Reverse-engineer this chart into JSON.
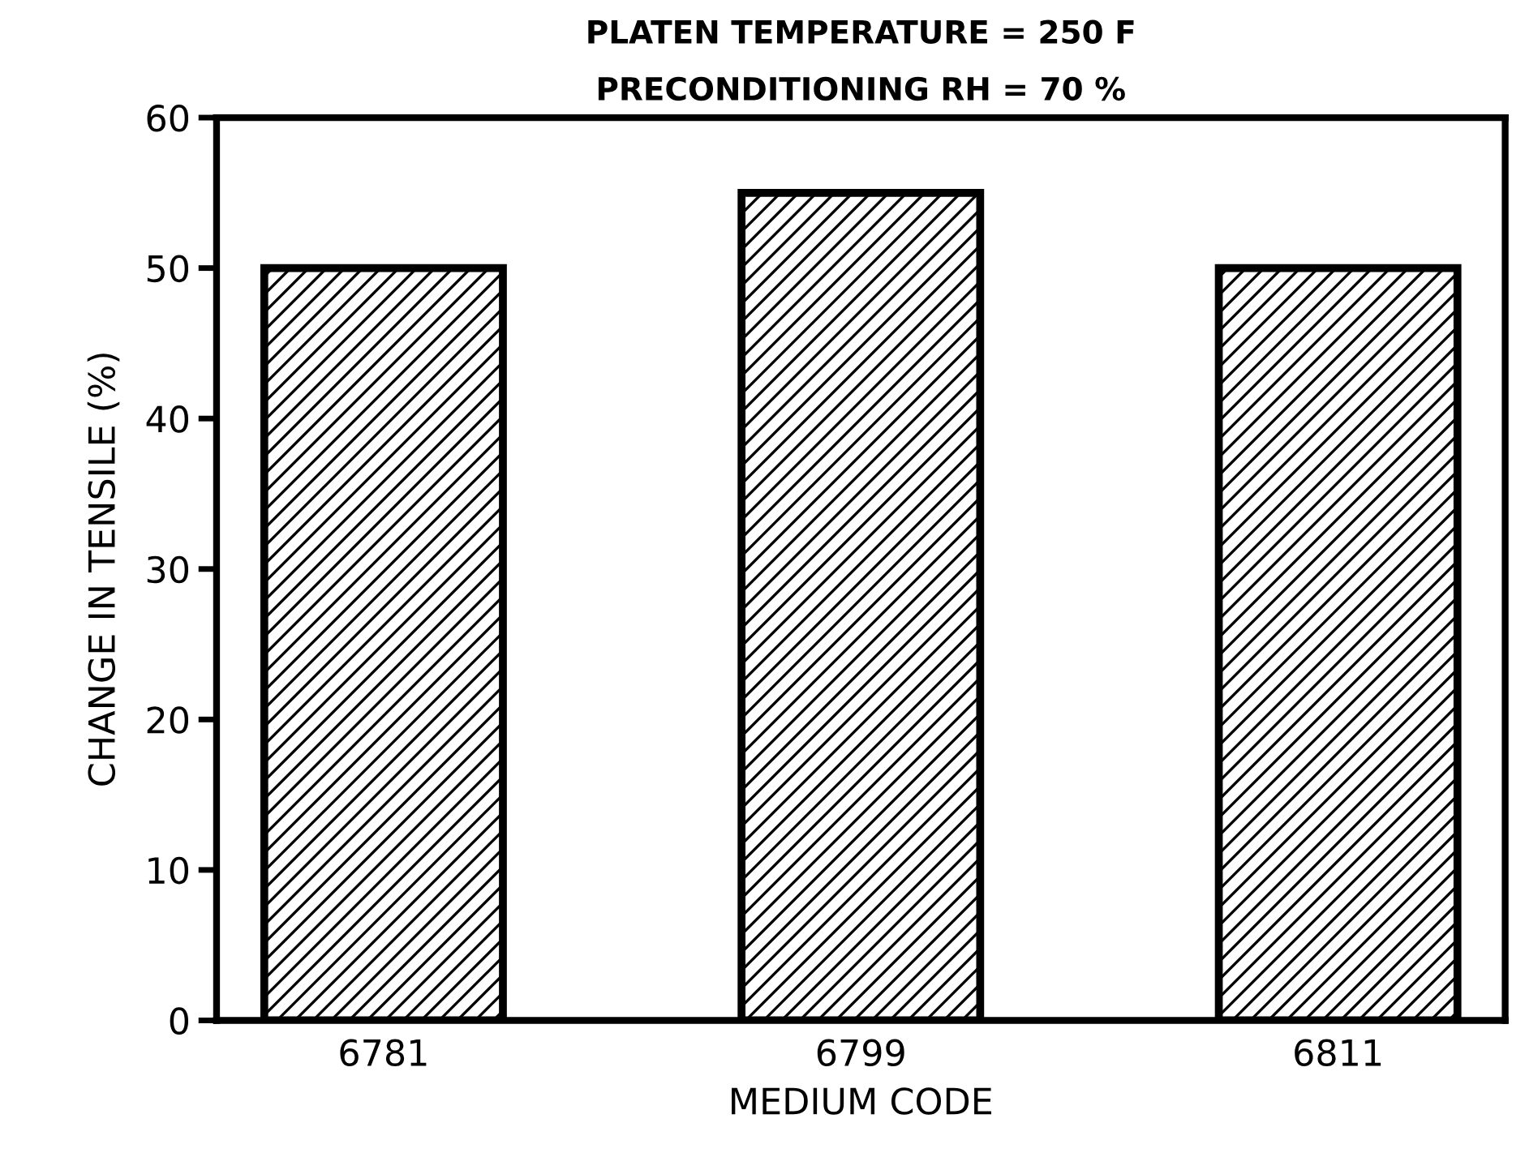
{
  "chart_data": {
    "type": "bar",
    "title": "PLATEN TEMPERATURE = 250 F",
    "subtitle": "PRECONDITIONING RH = 70 %",
    "xlabel": "MEDIUM CODE",
    "ylabel": "CHANGE IN TENSILE (%)",
    "categories": [
      "6781",
      "6799",
      "6811"
    ],
    "series": [
      {
        "color": "#000000",
        "values": [
          50,
          55,
          50
        ]
      }
    ],
    "ylim": [
      0,
      60
    ],
    "yticks": [
      0,
      10,
      20,
      30,
      40,
      50,
      60
    ],
    "grid": false,
    "legend": false
  }
}
